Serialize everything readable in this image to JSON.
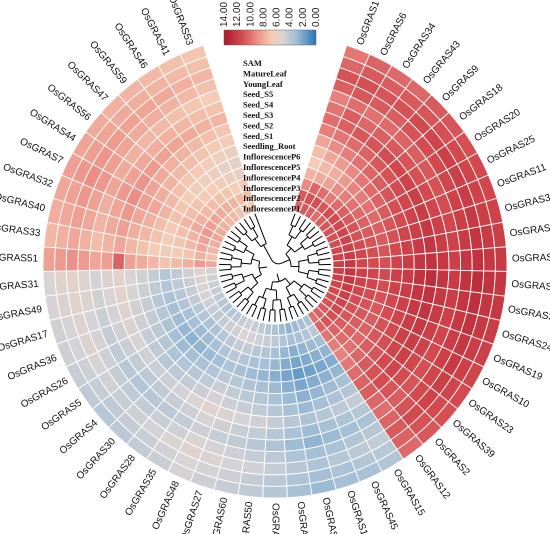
{
  "chart_data": {
    "type": "heatmap",
    "layout": "circular",
    "colorbar": {
      "ticks": [
        "14.00",
        "12.00",
        "10.00",
        "8.00",
        "6.00",
        "4.00",
        "2.00",
        "0.00"
      ],
      "range": [
        14,
        0
      ],
      "colors": [
        "#a8182c",
        "#d2464c",
        "#ec8e86",
        "#f5ccb5",
        "#d7d3d4",
        "#a4bfd6",
        "#5e97c7",
        "#2c73b2"
      ]
    },
    "tissues": [
      "SAM",
      "MatureLeaf",
      "YoungLeaf",
      "Seed_S5",
      "Seed_S4",
      "Seed_S3",
      "Seed_S2",
      "Seed_S1",
      "Seedling_Root",
      "InflorescenceP6",
      "InflorescenceP5",
      "InflorescenceP4",
      "InflorescenceP3",
      "InflorescenceP2",
      "InflorescenceP1"
    ],
    "genes": [
      "OsGRAS1",
      "OsGRAS6",
      "OsGRAS34",
      "OsGRAS43",
      "OsGRAS9",
      "OsGRAS18",
      "OsGRAS20",
      "OsGRAS25",
      "OsGRAS11",
      "OsGRAS38",
      "OsGRAS42",
      "OsGRAS61",
      "OsGRAS3",
      "OsGRAS37",
      "OsGRAS24",
      "OsGRAS19",
      "OsGRAS10",
      "OsGRAS23",
      "OsGRAS39",
      "OsGRAS2",
      "OsGRAS12",
      "OsGRAS15",
      "OsGRAS45",
      "OsGRAS13",
      "OsGRAS14",
      "OsGRAS21",
      "OsGRAS22",
      "OsGRAS50",
      "OsGRAS60",
      "OsGRAS27",
      "OsGRAS48",
      "OsGRAS35",
      "OsGRAS28",
      "OsGRAS30",
      "OsGRAS4",
      "OsGRAS5",
      "OsGRAS26",
      "OsGRAS36",
      "OsGRAS17",
      "OsGRAS49",
      "OsGRAS31",
      "OsGRAS51",
      "OsGRAS33",
      "OsGRAS40",
      "OsGRAS32",
      "OsGRAS7",
      "OsGRAS44",
      "OsGRAS56",
      "OsGRAS47",
      "OsGRAS59",
      "OsGRAS46",
      "OsGRAS41",
      "OsGRAS53"
    ],
    "values": [
      [
        10.5,
        10.8,
        9.2,
        7.8,
        6.9,
        7.5,
        8.3,
        9.6,
        10.1,
        9.9,
        9.4,
        10.6,
        11.1,
        10.4,
        9.8
      ],
      [
        10.8,
        11.2,
        10.4,
        8.1,
        7.6,
        8.2,
        9.1,
        9.8,
        10.6,
        10.7,
        10.1,
        10.9,
        11.2,
        10.8,
        10.5
      ],
      [
        10.6,
        11.2,
        10.1,
        8.5,
        8.0,
        8.6,
        9.5,
        10.2,
        10.9,
        10.4,
        10.0,
        10.8,
        11.0,
        10.7,
        10.3
      ],
      [
        10.2,
        10.9,
        9.8,
        9.1,
        8.7,
        9.2,
        10.0,
        10.5,
        11.0,
        10.6,
        10.2,
        10.7,
        11.1,
        10.8,
        10.4
      ],
      [
        10.7,
        11.3,
        10.2,
        9.6,
        9.3,
        9.8,
        10.4,
        10.9,
        11.3,
        10.8,
        10.5,
        11.1,
        11.4,
        11.0,
        10.8
      ],
      [
        10.9,
        11.4,
        10.6,
        10.0,
        9.7,
        10.2,
        10.7,
        11.1,
        11.5,
        11.0,
        10.7,
        11.3,
        11.6,
        11.2,
        11.0
      ],
      [
        11.1,
        11.5,
        10.8,
        10.3,
        10.0,
        10.5,
        11.0,
        11.3,
        11.7,
        11.2,
        10.9,
        11.4,
        11.8,
        11.4,
        11.2
      ],
      [
        11.2,
        11.6,
        11.0,
        10.6,
        10.3,
        10.8,
        11.2,
        11.5,
        11.9,
        11.4,
        11.1,
        11.6,
        11.9,
        11.6,
        11.4
      ],
      [
        11.3,
        11.7,
        11.1,
        10.8,
        10.6,
        11.0,
        11.4,
        11.7,
        12.0,
        11.6,
        11.3,
        11.8,
        12.0,
        11.7,
        11.5
      ],
      [
        11.5,
        11.9,
        11.3,
        11.0,
        10.8,
        11.2,
        11.6,
        11.9,
        12.2,
        11.8,
        11.5,
        11.9,
        12.2,
        11.9,
        11.7
      ],
      [
        11.7,
        12.0,
        11.5,
        11.2,
        11.0,
        11.4,
        11.8,
        12.1,
        12.4,
        12.0,
        11.7,
        12.1,
        12.4,
        12.1,
        11.9
      ],
      [
        11.8,
        12.2,
        11.6,
        11.4,
        11.2,
        11.6,
        12.0,
        12.3,
        12.6,
        12.2,
        11.9,
        12.3,
        12.6,
        12.3,
        12.1
      ],
      [
        11.9,
        12.3,
        11.8,
        11.6,
        11.4,
        11.8,
        12.1,
        12.5,
        12.8,
        12.4,
        12.1,
        12.5,
        12.8,
        12.5,
        12.3
      ],
      [
        11.8,
        12.2,
        11.7,
        11.5,
        11.3,
        11.7,
        12.0,
        12.4,
        12.6,
        12.3,
        12.0,
        12.4,
        12.7,
        12.4,
        12.2
      ],
      [
        11.6,
        12.0,
        11.5,
        11.3,
        11.1,
        11.5,
        11.8,
        12.2,
        12.4,
        12.1,
        11.8,
        12.2,
        12.5,
        12.2,
        12.0
      ],
      [
        11.4,
        11.8,
        11.3,
        11.1,
        10.9,
        11.3,
        11.6,
        12.0,
        12.2,
        11.9,
        11.6,
        12.0,
        12.3,
        12.0,
        11.8
      ],
      [
        11.2,
        11.6,
        11.1,
        10.9,
        10.7,
        11.1,
        11.4,
        11.8,
        12.0,
        11.7,
        11.4,
        11.8,
        12.1,
        11.8,
        11.6
      ],
      [
        11.0,
        11.4,
        10.9,
        10.7,
        10.5,
        10.9,
        11.2,
        11.6,
        11.8,
        11.5,
        11.2,
        11.6,
        11.9,
        11.6,
        11.4
      ],
      [
        10.8,
        11.2,
        10.7,
        10.5,
        10.3,
        10.7,
        11.0,
        11.4,
        11.6,
        11.3,
        11.0,
        11.4,
        11.7,
        11.4,
        11.2
      ],
      [
        10.6,
        11.0,
        10.5,
        10.2,
        10.0,
        10.4,
        10.8,
        11.1,
        11.3,
        11.0,
        10.7,
        11.1,
        11.4,
        11.1,
        10.9
      ],
      [
        10.1,
        10.5,
        9.9,
        9.6,
        9.4,
        9.8,
        10.2,
        10.5,
        10.7,
        10.4,
        10.1,
        10.5,
        10.8,
        10.5,
        10.3
      ],
      [
        4.2,
        4.6,
        4.0,
        3.6,
        3.3,
        3.7,
        4.1,
        4.4,
        4.9,
        4.5,
        4.2,
        4.6,
        4.9,
        4.6,
        4.4
      ],
      [
        4.0,
        4.4,
        3.8,
        3.4,
        3.1,
        3.5,
        3.9,
        4.2,
        4.7,
        4.3,
        4.0,
        4.4,
        4.7,
        4.4,
        4.2
      ],
      [
        3.8,
        4.2,
        3.6,
        3.2,
        2.9,
        3.3,
        3.7,
        4.0,
        4.5,
        4.1,
        3.8,
        4.2,
        4.5,
        4.2,
        4.0
      ],
      [
        3.6,
        4.0,
        3.4,
        3.0,
        2.7,
        3.1,
        3.5,
        3.8,
        4.3,
        3.9,
        3.6,
        4.0,
        4.3,
        4.0,
        3.8
      ],
      [
        3.9,
        4.3,
        3.7,
        3.3,
        3.0,
        3.4,
        3.8,
        4.1,
        4.6,
        4.2,
        3.9,
        4.3,
        4.6,
        4.3,
        4.1
      ],
      [
        4.3,
        4.7,
        4.1,
        3.7,
        3.4,
        3.8,
        4.2,
        4.5,
        5.0,
        4.6,
        4.3,
        4.7,
        5.0,
        4.7,
        4.5
      ],
      [
        4.6,
        5.0,
        4.4,
        4.0,
        3.7,
        4.1,
        4.5,
        4.8,
        5.3,
        4.9,
        4.6,
        5.0,
        5.3,
        5.0,
        4.8
      ],
      [
        4.8,
        5.2,
        4.6,
        4.2,
        3.9,
        4.3,
        4.7,
        5.0,
        5.5,
        5.1,
        4.8,
        5.2,
        5.5,
        5.2,
        5.0
      ],
      [
        5.0,
        5.4,
        4.8,
        4.4,
        4.1,
        4.5,
        4.9,
        5.2,
        5.7,
        5.3,
        5.0,
        5.4,
        5.7,
        5.4,
        5.2
      ],
      [
        5.2,
        5.6,
        5.0,
        4.6,
        4.3,
        4.7,
        5.1,
        5.4,
        5.9,
        5.5,
        5.2,
        5.6,
        5.9,
        5.6,
        5.4
      ],
      [
        4.9,
        5.3,
        4.7,
        4.3,
        4.0,
        4.4,
        4.8,
        5.1,
        5.6,
        5.2,
        4.9,
        5.3,
        5.6,
        5.3,
        5.1
      ],
      [
        4.7,
        5.1,
        4.5,
        4.1,
        3.8,
        4.2,
        4.6,
        4.9,
        5.4,
        5.0,
        4.7,
        5.1,
        5.4,
        5.1,
        4.9
      ],
      [
        4.5,
        4.9,
        4.3,
        3.9,
        3.6,
        4.0,
        4.4,
        4.7,
        5.2,
        4.8,
        4.5,
        4.9,
        5.2,
        4.9,
        4.7
      ],
      [
        4.4,
        4.8,
        4.2,
        3.8,
        3.5,
        3.9,
        4.3,
        4.6,
        5.1,
        4.7,
        4.4,
        4.8,
        5.1,
        4.8,
        4.6
      ],
      [
        4.6,
        5.0,
        4.4,
        4.0,
        3.7,
        4.1,
        4.5,
        4.8,
        5.3,
        4.9,
        4.6,
        5.0,
        5.3,
        5.0,
        4.8
      ],
      [
        4.8,
        5.2,
        4.6,
        4.2,
        3.9,
        4.3,
        4.7,
        5.0,
        5.5,
        5.1,
        4.8,
        5.2,
        5.5,
        5.2,
        5.0
      ],
      [
        5.0,
        5.4,
        4.8,
        4.4,
        4.1,
        4.5,
        4.9,
        5.2,
        5.7,
        5.3,
        5.0,
        5.4,
        5.7,
        5.4,
        5.2
      ],
      [
        5.1,
        5.5,
        4.9,
        4.5,
        4.2,
        4.6,
        5.0,
        5.3,
        5.8,
        5.4,
        5.1,
        5.5,
        5.8,
        5.5,
        5.3
      ],
      [
        5.3,
        5.7,
        5.1,
        4.7,
        4.4,
        4.8,
        5.2,
        5.5,
        6.0,
        5.6,
        5.3,
        5.7,
        6.0,
        5.7,
        5.5
      ],
      [
        5.4,
        5.8,
        5.2,
        4.8,
        4.5,
        4.9,
        5.3,
        5.6,
        6.1,
        5.7,
        5.4,
        5.8,
        6.1,
        5.8,
        5.6
      ],
      [
        8.2,
        8.6,
        8.0,
        7.6,
        7.3,
        7.7,
        8.1,
        8.4,
        10.5,
        8.5,
        8.2,
        8.6,
        8.9,
        8.6,
        8.4
      ],
      [
        7.5,
        7.9,
        7.3,
        6.9,
        6.6,
        7.0,
        7.4,
        7.7,
        8.2,
        7.8,
        7.5,
        7.9,
        8.2,
        7.9,
        7.7
      ],
      [
        7.8,
        8.2,
        7.6,
        7.2,
        6.9,
        7.3,
        7.7,
        8.0,
        8.5,
        8.1,
        7.8,
        8.2,
        8.5,
        8.2,
        8.0
      ],
      [
        8.0,
        8.4,
        7.8,
        7.4,
        7.1,
        7.5,
        7.9,
        8.2,
        8.7,
        8.3,
        8.0,
        8.4,
        8.7,
        8.4,
        8.2
      ],
      [
        8.3,
        8.7,
        8.1,
        7.7,
        7.4,
        7.8,
        8.2,
        8.5,
        9.0,
        8.6,
        8.3,
        8.7,
        9.0,
        8.7,
        8.5
      ],
      [
        8.1,
        8.5,
        7.9,
        7.5,
        7.2,
        7.6,
        8.0,
        8.3,
        8.8,
        8.4,
        8.1,
        8.5,
        8.8,
        8.5,
        8.3
      ],
      [
        7.9,
        8.3,
        7.7,
        7.3,
        7.0,
        7.4,
        7.8,
        8.1,
        8.6,
        8.2,
        7.9,
        8.3,
        8.6,
        8.3,
        8.1
      ],
      [
        7.7,
        8.1,
        7.5,
        7.1,
        6.8,
        7.2,
        7.6,
        7.9,
        8.4,
        8.0,
        7.7,
        8.1,
        8.4,
        8.1,
        7.9
      ],
      [
        7.6,
        8.0,
        7.4,
        7.0,
        6.7,
        7.1,
        7.5,
        7.8,
        8.3,
        7.9,
        7.6,
        8.0,
        8.3,
        8.0,
        7.8
      ],
      [
        7.4,
        7.8,
        7.2,
        6.8,
        6.5,
        6.9,
        7.3,
        7.6,
        8.1,
        7.7,
        7.4,
        7.8,
        8.1,
        7.8,
        7.6
      ],
      [
        7.2,
        7.6,
        7.0,
        6.6,
        6.3,
        6.7,
        7.1,
        7.4,
        7.9,
        7.5,
        7.2,
        7.6,
        7.9,
        7.6,
        7.4
      ],
      [
        7.0,
        7.4,
        6.8,
        6.4,
        6.1,
        6.5,
        6.9,
        7.2,
        7.7,
        7.3,
        7.0,
        7.4,
        7.7,
        7.4,
        7.2
      ]
    ]
  }
}
